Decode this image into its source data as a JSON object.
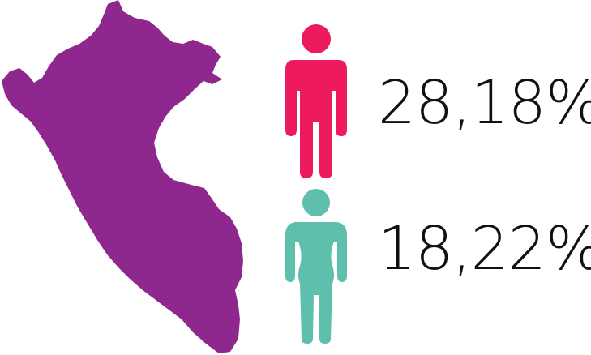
{
  "map": {
    "icon": "peru-map-icon",
    "color": "#8e288f"
  },
  "male": {
    "icon": "man-icon",
    "color": "#ed1a5e",
    "percent": "28,18%"
  },
  "female": {
    "icon": "woman-icon",
    "color": "#5fbfad",
    "percent": "18,22%"
  }
}
